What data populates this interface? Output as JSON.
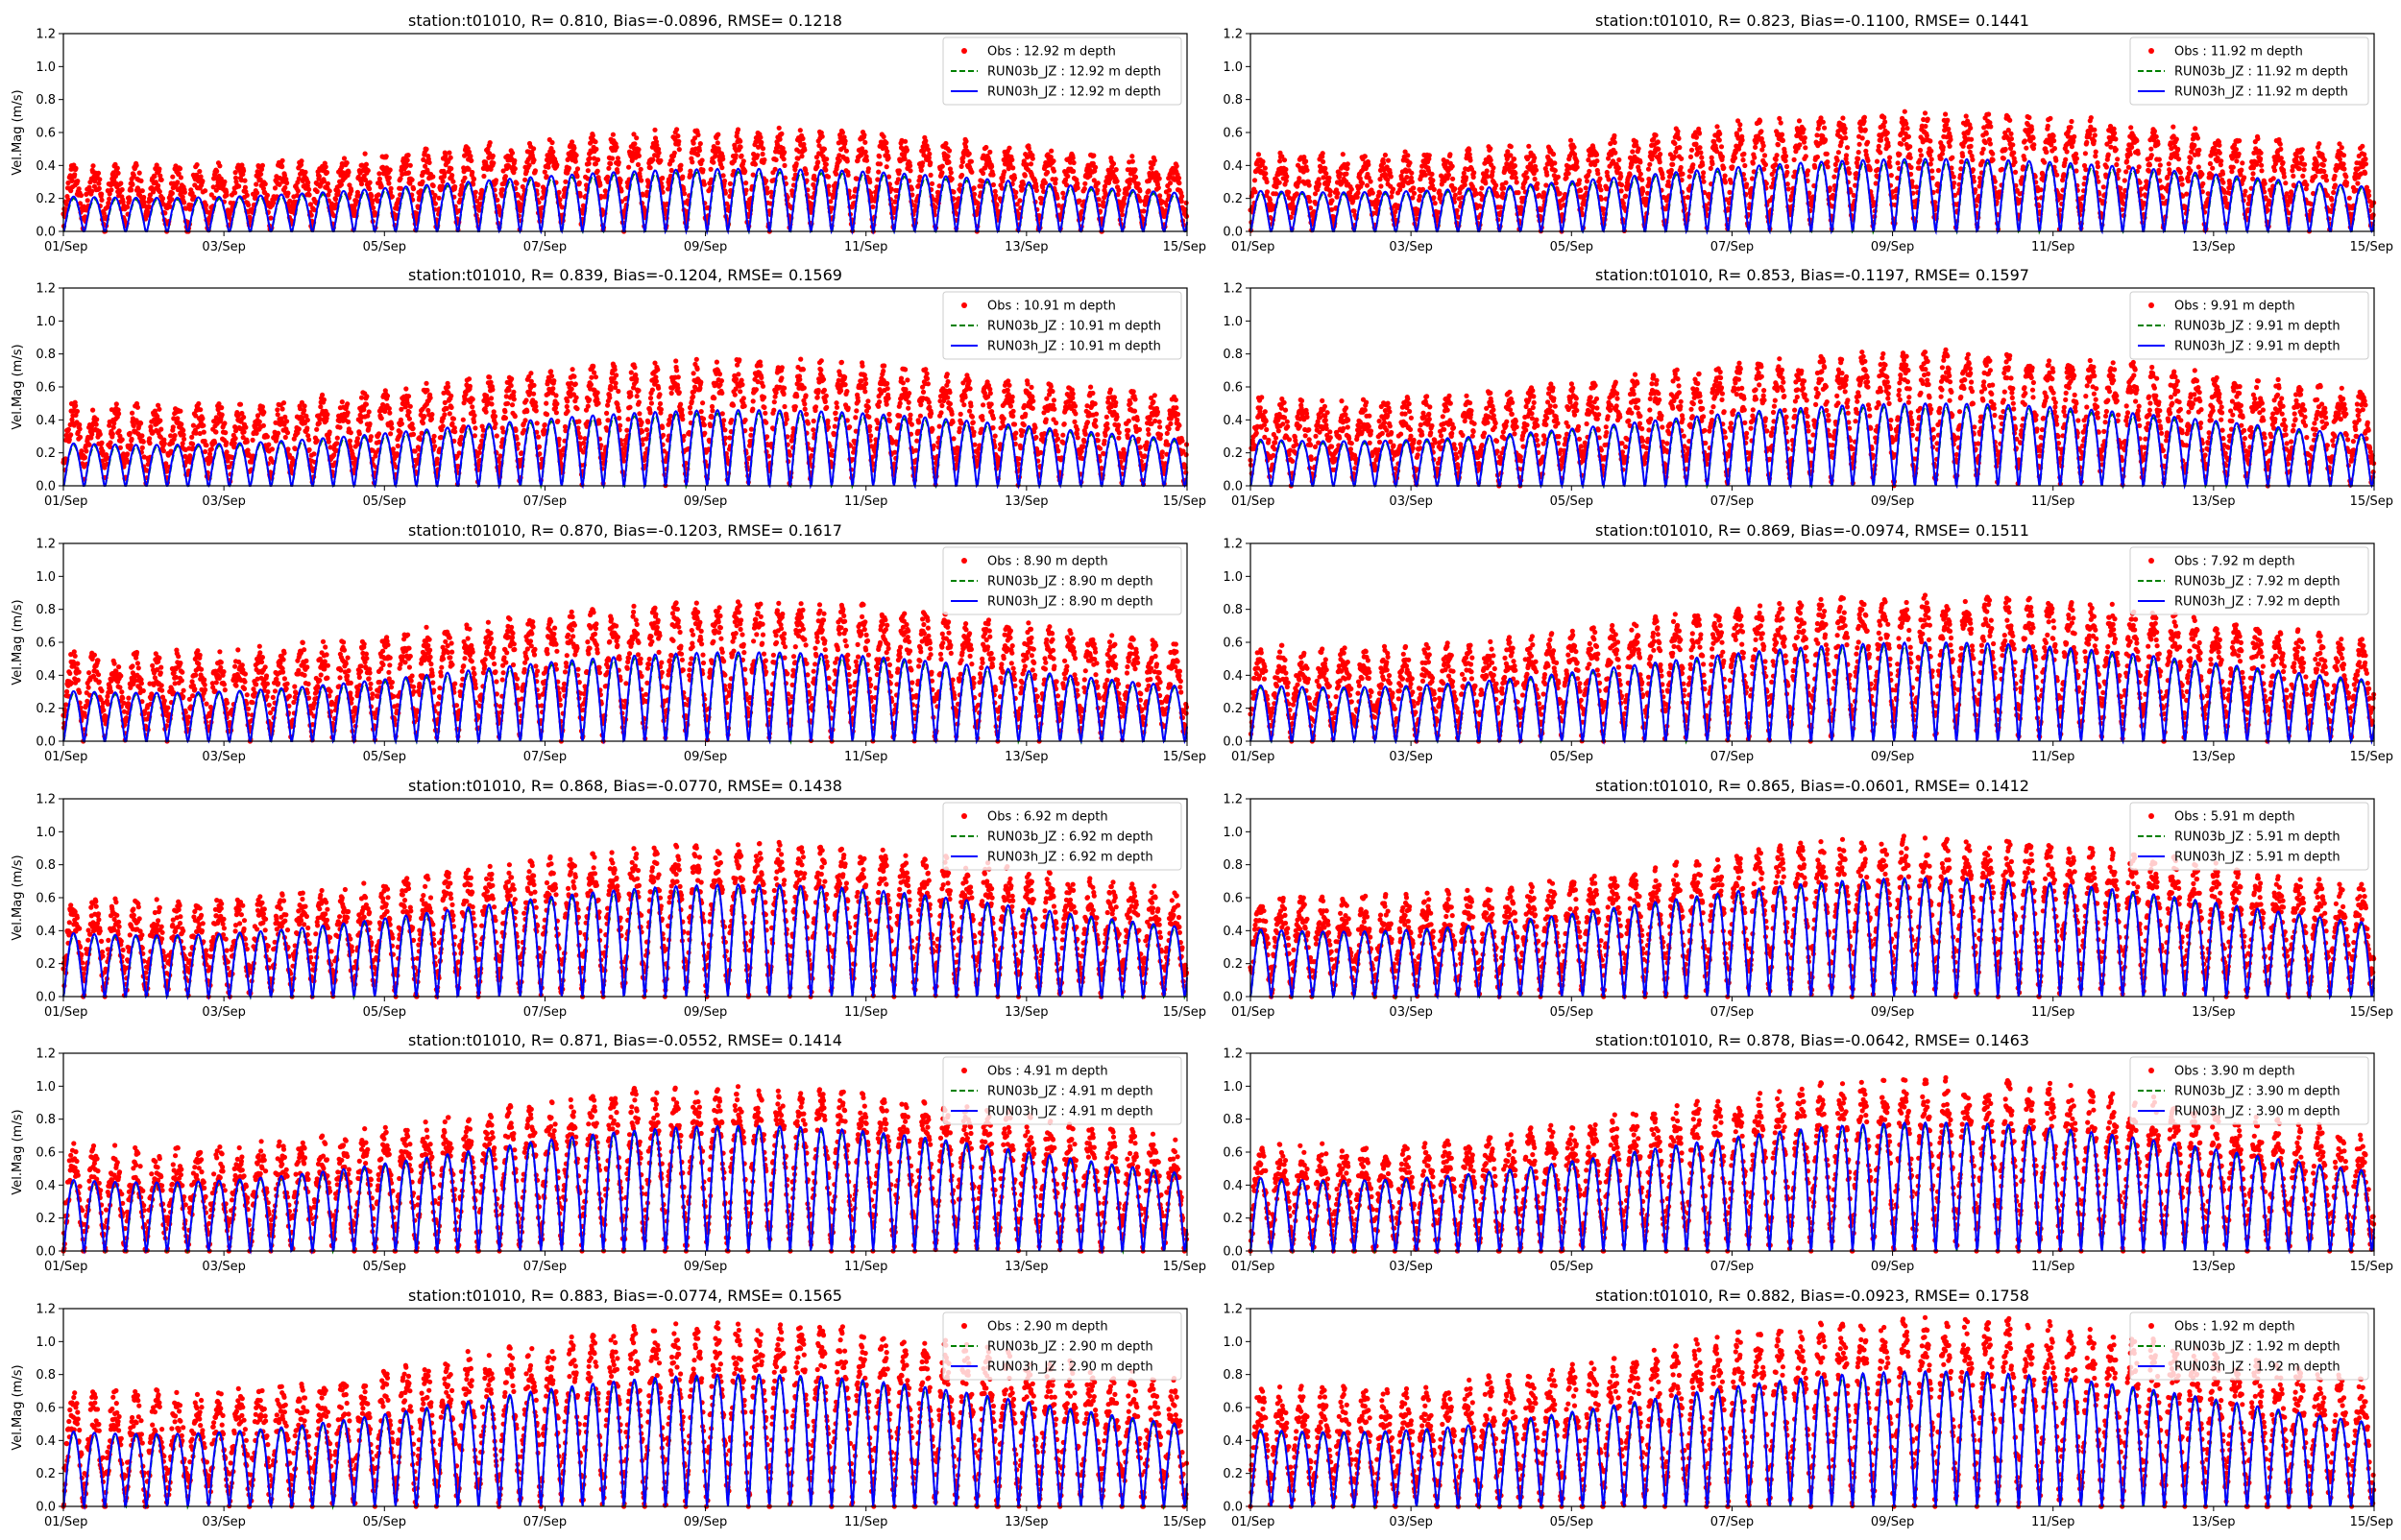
{
  "figure": {
    "colors": {
      "obs": "#ff0000",
      "run03b": "#008000",
      "run03h": "#0000ff",
      "axis": "#000000",
      "legend_border": "#cccccc"
    }
  },
  "chart_data": [
    {
      "type": "line",
      "title": "station:t01010, R= 0.810, Bias=-0.0896, RMSE= 0.1218",
      "ylabel": "Vel.Mag (m/s)",
      "xlabel": "",
      "xlim": [
        0,
        14
      ],
      "ylim": [
        0,
        1.2
      ],
      "xticks": [
        0,
        2,
        4,
        6,
        8,
        10,
        12,
        14
      ],
      "xtick_labels": [
        "01/Sep",
        "03/Sep",
        "05/Sep",
        "07/Sep",
        "09/Sep",
        "11/Sep",
        "13/Sep",
        "15/Sep"
      ],
      "yticks": [
        0,
        0.2,
        0.4,
        0.6,
        0.8,
        1.0,
        1.2
      ],
      "ytick_labels": [
        "0.0",
        "0.2",
        "0.4",
        "0.6",
        "0.8",
        "1.0",
        "1.2"
      ],
      "legend_position": "upper right",
      "series": [
        {
          "name": "Obs : 12.92 m depth",
          "kind": "scatter",
          "color": "#ff0000",
          "peak": 0.5,
          "base": 0.12,
          "noise": 0.08
        },
        {
          "name": "RUN03b_JZ : 12.92 m depth",
          "kind": "dashed",
          "color": "#008000",
          "peak": 0.38
        },
        {
          "name": "RUN03h_JZ : 12.92 m depth",
          "kind": "line",
          "color": "#0000ff",
          "peak": 0.4
        }
      ]
    },
    {
      "type": "line",
      "title": "station:t01010, R= 0.823, Bias=-0.1100, RMSE= 0.1441",
      "ylabel": "",
      "xlabel": "",
      "xlim": [
        0,
        14
      ],
      "ylim": [
        0,
        1.2
      ],
      "xticks": [
        0,
        2,
        4,
        6,
        8,
        10,
        12,
        14
      ],
      "xtick_labels": [
        "01/Sep",
        "03/Sep",
        "05/Sep",
        "07/Sep",
        "09/Sep",
        "11/Sep",
        "13/Sep",
        "15/Sep"
      ],
      "yticks": [
        0,
        0.2,
        0.4,
        0.6,
        0.8,
        1.0,
        1.2
      ],
      "ytick_labels": [
        "0.0",
        "0.2",
        "0.4",
        "0.6",
        "0.8",
        "1.0",
        "1.2"
      ],
      "legend_position": "upper right",
      "series": [
        {
          "name": "Obs : 11.92 m depth",
          "kind": "scatter",
          "color": "#ff0000",
          "peak": 0.58,
          "base": 0.14,
          "noise": 0.09
        },
        {
          "name": "RUN03b_JZ : 11.92 m depth",
          "kind": "dashed",
          "color": "#008000",
          "peak": 0.44
        },
        {
          "name": "RUN03h_JZ : 11.92 m depth",
          "kind": "line",
          "color": "#0000ff",
          "peak": 0.46
        }
      ]
    },
    {
      "type": "line",
      "title": "station:t01010, R= 0.839, Bias=-0.1204, RMSE= 0.1569",
      "ylabel": "Vel.Mag (m/s)",
      "xlabel": "",
      "xlim": [
        0,
        14
      ],
      "ylim": [
        0,
        1.2
      ],
      "xticks": [
        0,
        2,
        4,
        6,
        8,
        10,
        12,
        14
      ],
      "xtick_labels": [
        "01/Sep",
        "03/Sep",
        "05/Sep",
        "07/Sep",
        "09/Sep",
        "11/Sep",
        "13/Sep",
        "15/Sep"
      ],
      "yticks": [
        0,
        0.2,
        0.4,
        0.6,
        0.8,
        1.0,
        1.2
      ],
      "ytick_labels": [
        "0.0",
        "0.2",
        "0.4",
        "0.6",
        "0.8",
        "1.0",
        "1.2"
      ],
      "legend_position": "upper right",
      "series": [
        {
          "name": "Obs : 10.91 m depth",
          "kind": "scatter",
          "color": "#ff0000",
          "peak": 0.62,
          "base": 0.15,
          "noise": 0.09
        },
        {
          "name": "RUN03b_JZ : 10.91 m depth",
          "kind": "dashed",
          "color": "#008000",
          "peak": 0.46
        },
        {
          "name": "RUN03h_JZ : 10.91 m depth",
          "kind": "line",
          "color": "#0000ff",
          "peak": 0.48
        }
      ]
    },
    {
      "type": "line",
      "title": "station:t01010, R= 0.853, Bias=-0.1197, RMSE= 0.1597",
      "ylabel": "",
      "xlabel": "",
      "xlim": [
        0,
        14
      ],
      "ylim": [
        0,
        1.2
      ],
      "xticks": [
        0,
        2,
        4,
        6,
        8,
        10,
        12,
        14
      ],
      "xtick_labels": [
        "01/Sep",
        "03/Sep",
        "05/Sep",
        "07/Sep",
        "09/Sep",
        "11/Sep",
        "13/Sep",
        "15/Sep"
      ],
      "yticks": [
        0,
        0.2,
        0.4,
        0.6,
        0.8,
        1.0,
        1.2
      ],
      "ytick_labels": [
        "0.0",
        "0.2",
        "0.4",
        "0.6",
        "0.8",
        "1.0",
        "1.2"
      ],
      "legend_position": "upper right",
      "series": [
        {
          "name": "Obs : 9.91 m depth",
          "kind": "scatter",
          "color": "#ff0000",
          "peak": 0.66,
          "base": 0.15,
          "noise": 0.1
        },
        {
          "name": "RUN03b_JZ : 9.91 m depth",
          "kind": "dashed",
          "color": "#008000",
          "peak": 0.5
        },
        {
          "name": "RUN03h_JZ : 9.91 m depth",
          "kind": "line",
          "color": "#0000ff",
          "peak": 0.52
        }
      ]
    },
    {
      "type": "line",
      "title": "station:t01010, R= 0.870, Bias=-0.1203, RMSE= 0.1617",
      "ylabel": "Vel.Mag (m/s)",
      "xlabel": "",
      "xlim": [
        0,
        14
      ],
      "ylim": [
        0,
        1.2
      ],
      "xticks": [
        0,
        2,
        4,
        6,
        8,
        10,
        12,
        14
      ],
      "xtick_labels": [
        "01/Sep",
        "03/Sep",
        "05/Sep",
        "07/Sep",
        "09/Sep",
        "11/Sep",
        "13/Sep",
        "15/Sep"
      ],
      "yticks": [
        0,
        0.2,
        0.4,
        0.6,
        0.8,
        1.0,
        1.2
      ],
      "ytick_labels": [
        "0.0",
        "0.2",
        "0.4",
        "0.6",
        "0.8",
        "1.0",
        "1.2"
      ],
      "legend_position": "upper right",
      "series": [
        {
          "name": "Obs : 8.90 m depth",
          "kind": "scatter",
          "color": "#ff0000",
          "peak": 0.7,
          "base": 0.14,
          "noise": 0.1
        },
        {
          "name": "RUN03b_JZ : 8.90 m depth",
          "kind": "dashed",
          "color": "#008000",
          "peak": 0.54
        },
        {
          "name": "RUN03h_JZ : 8.90 m depth",
          "kind": "line",
          "color": "#0000ff",
          "peak": 0.56
        }
      ]
    },
    {
      "type": "line",
      "title": "station:t01010, R= 0.869, Bias=-0.0974, RMSE= 0.1511",
      "ylabel": "",
      "xlabel": "",
      "xlim": [
        0,
        14
      ],
      "ylim": [
        0,
        1.2
      ],
      "xticks": [
        0,
        2,
        4,
        6,
        8,
        10,
        12,
        14
      ],
      "xtick_labels": [
        "01/Sep",
        "03/Sep",
        "05/Sep",
        "07/Sep",
        "09/Sep",
        "11/Sep",
        "13/Sep",
        "15/Sep"
      ],
      "yticks": [
        0,
        0.2,
        0.4,
        0.6,
        0.8,
        1.0,
        1.2
      ],
      "ytick_labels": [
        "0.0",
        "0.2",
        "0.4",
        "0.6",
        "0.8",
        "1.0",
        "1.2"
      ],
      "legend_position": "upper right",
      "series": [
        {
          "name": "Obs : 7.92 m depth",
          "kind": "scatter",
          "color": "#ff0000",
          "peak": 0.74,
          "base": 0.14,
          "noise": 0.1
        },
        {
          "name": "RUN03b_JZ : 7.92 m depth",
          "kind": "dashed",
          "color": "#008000",
          "peak": 0.6
        },
        {
          "name": "RUN03h_JZ : 7.92 m depth",
          "kind": "line",
          "color": "#0000ff",
          "peak": 0.62
        }
      ]
    },
    {
      "type": "line",
      "title": "station:t01010, R= 0.868, Bias=-0.0770, RMSE= 0.1438",
      "ylabel": "Vel.Mag (m/s)",
      "xlabel": "",
      "xlim": [
        0,
        14
      ],
      "ylim": [
        0,
        1.2
      ],
      "xticks": [
        0,
        2,
        4,
        6,
        8,
        10,
        12,
        14
      ],
      "xtick_labels": [
        "01/Sep",
        "03/Sep",
        "05/Sep",
        "07/Sep",
        "09/Sep",
        "11/Sep",
        "13/Sep",
        "15/Sep"
      ],
      "yticks": [
        0,
        0.2,
        0.4,
        0.6,
        0.8,
        1.0,
        1.2
      ],
      "ytick_labels": [
        "0.0",
        "0.2",
        "0.4",
        "0.6",
        "0.8",
        "1.0",
        "1.2"
      ],
      "legend_position": "upper right",
      "series": [
        {
          "name": "Obs : 6.92 m depth",
          "kind": "scatter",
          "color": "#ff0000",
          "peak": 0.78,
          "base": 0.12,
          "noise": 0.11
        },
        {
          "name": "RUN03b_JZ : 6.92 m depth",
          "kind": "dashed",
          "color": "#008000",
          "peak": 0.68
        },
        {
          "name": "RUN03h_JZ : 6.92 m depth",
          "kind": "line",
          "color": "#0000ff",
          "peak": 0.7
        }
      ]
    },
    {
      "type": "line",
      "title": "station:t01010, R= 0.865, Bias=-0.0601, RMSE= 0.1412",
      "ylabel": "",
      "xlabel": "",
      "xlim": [
        0,
        14
      ],
      "ylim": [
        0,
        1.2
      ],
      "xticks": [
        0,
        2,
        4,
        6,
        8,
        10,
        12,
        14
      ],
      "xtick_labels": [
        "01/Sep",
        "03/Sep",
        "05/Sep",
        "07/Sep",
        "09/Sep",
        "11/Sep",
        "13/Sep",
        "15/Sep"
      ],
      "yticks": [
        0,
        0.2,
        0.4,
        0.6,
        0.8,
        1.0,
        1.2
      ],
      "ytick_labels": [
        "0.0",
        "0.2",
        "0.4",
        "0.6",
        "0.8",
        "1.0",
        "1.2"
      ],
      "legend_position": "upper right",
      "series": [
        {
          "name": "Obs : 5.91 m depth",
          "kind": "scatter",
          "color": "#ff0000",
          "peak": 0.82,
          "base": 0.12,
          "noise": 0.11
        },
        {
          "name": "RUN03b_JZ : 5.91 m depth",
          "kind": "dashed",
          "color": "#008000",
          "peak": 0.72
        },
        {
          "name": "RUN03h_JZ : 5.91 m depth",
          "kind": "line",
          "color": "#0000ff",
          "peak": 0.74
        }
      ]
    },
    {
      "type": "line",
      "title": "station:t01010, R= 0.871, Bias=-0.0552, RMSE= 0.1414",
      "ylabel": "Vel.Mag (m/s)",
      "xlabel": "",
      "xlim": [
        0,
        14
      ],
      "ylim": [
        0,
        1.2
      ],
      "xticks": [
        0,
        2,
        4,
        6,
        8,
        10,
        12,
        14
      ],
      "xtick_labels": [
        "01/Sep",
        "03/Sep",
        "05/Sep",
        "07/Sep",
        "09/Sep",
        "11/Sep",
        "13/Sep",
        "15/Sep"
      ],
      "yticks": [
        0,
        0.2,
        0.4,
        0.6,
        0.8,
        1.0,
        1.2
      ],
      "ytick_labels": [
        "0.0",
        "0.2",
        "0.4",
        "0.6",
        "0.8",
        "1.0",
        "1.2"
      ],
      "legend_position": "upper right",
      "series": [
        {
          "name": "Obs : 4.91 m depth",
          "kind": "scatter",
          "color": "#ff0000",
          "peak": 0.86,
          "base": 0.1,
          "noise": 0.12
        },
        {
          "name": "RUN03b_JZ : 4.91 m depth",
          "kind": "dashed",
          "color": "#008000",
          "peak": 0.76
        },
        {
          "name": "RUN03h_JZ : 4.91 m depth",
          "kind": "line",
          "color": "#0000ff",
          "peak": 0.78
        }
      ]
    },
    {
      "type": "line",
      "title": "station:t01010, R= 0.878, Bias=-0.0642, RMSE= 0.1463",
      "ylabel": "",
      "xlabel": "",
      "xlim": [
        0,
        14
      ],
      "ylim": [
        0,
        1.2
      ],
      "xticks": [
        0,
        2,
        4,
        6,
        8,
        10,
        12,
        14
      ],
      "xtick_labels": [
        "01/Sep",
        "03/Sep",
        "05/Sep",
        "07/Sep",
        "09/Sep",
        "11/Sep",
        "13/Sep",
        "15/Sep"
      ],
      "yticks": [
        0,
        0.2,
        0.4,
        0.6,
        0.8,
        1.0,
        1.2
      ],
      "ytick_labels": [
        "0.0",
        "0.2",
        "0.4",
        "0.6",
        "0.8",
        "1.0",
        "1.2"
      ],
      "legend_position": "upper right",
      "series": [
        {
          "name": "Obs : 3.90 m depth",
          "kind": "scatter",
          "color": "#ff0000",
          "peak": 0.9,
          "base": 0.1,
          "noise": 0.12
        },
        {
          "name": "RUN03b_JZ : 3.90 m depth",
          "kind": "dashed",
          "color": "#008000",
          "peak": 0.78
        },
        {
          "name": "RUN03h_JZ : 3.90 m depth",
          "kind": "line",
          "color": "#0000ff",
          "peak": 0.8
        }
      ]
    },
    {
      "type": "line",
      "title": "station:t01010, R= 0.883, Bias=-0.0774, RMSE= 0.1565",
      "ylabel": "Vel.Mag (m/s)",
      "xlabel": "",
      "xlim": [
        0,
        14
      ],
      "ylim": [
        0,
        1.2
      ],
      "xticks": [
        0,
        2,
        4,
        6,
        8,
        10,
        12,
        14
      ],
      "xtick_labels": [
        "01/Sep",
        "03/Sep",
        "05/Sep",
        "07/Sep",
        "09/Sep",
        "11/Sep",
        "13/Sep",
        "15/Sep"
      ],
      "yticks": [
        0,
        0.2,
        0.4,
        0.6,
        0.8,
        1.0,
        1.2
      ],
      "ytick_labels": [
        "0.0",
        "0.2",
        "0.4",
        "0.6",
        "0.8",
        "1.0",
        "1.2"
      ],
      "legend_position": "upper right",
      "series": [
        {
          "name": "Obs : 2.90 m depth",
          "kind": "scatter",
          "color": "#ff0000",
          "peak": 0.96,
          "base": 0.1,
          "noise": 0.13
        },
        {
          "name": "RUN03b_JZ : 2.90 m depth",
          "kind": "dashed",
          "color": "#008000",
          "peak": 0.8
        },
        {
          "name": "RUN03h_JZ : 2.90 m depth",
          "kind": "line",
          "color": "#0000ff",
          "peak": 0.82
        }
      ]
    },
    {
      "type": "line",
      "title": "station:t01010, R= 0.882, Bias=-0.0923, RMSE= 0.1758",
      "ylabel": "",
      "xlabel": "",
      "xlim": [
        0,
        14
      ],
      "ylim": [
        0,
        1.2
      ],
      "xticks": [
        0,
        2,
        4,
        6,
        8,
        10,
        12,
        14
      ],
      "xtick_labels": [
        "01/Sep",
        "03/Sep",
        "05/Sep",
        "07/Sep",
        "09/Sep",
        "11/Sep",
        "13/Sep",
        "15/Sep"
      ],
      "yticks": [
        0,
        0.2,
        0.4,
        0.6,
        0.8,
        1.0,
        1.2
      ],
      "ytick_labels": [
        "0.0",
        "0.2",
        "0.4",
        "0.6",
        "0.8",
        "1.0",
        "1.2"
      ],
      "legend_position": "upper right",
      "series": [
        {
          "name": "Obs : 1.92 m depth",
          "kind": "scatter",
          "color": "#ff0000",
          "peak": 1.0,
          "base": 0.1,
          "noise": 0.13
        },
        {
          "name": "RUN03b_JZ : 1.92 m depth",
          "kind": "dashed",
          "color": "#008000",
          "peak": 0.82
        },
        {
          "name": "RUN03h_JZ : 1.92 m depth",
          "kind": "line",
          "color": "#0000ff",
          "peak": 0.84
        }
      ]
    }
  ]
}
